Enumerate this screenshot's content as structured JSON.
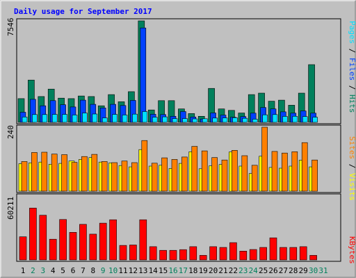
{
  "chart_data": [
    {
      "type": "bar",
      "title": "Daily usage for September 2017",
      "categories": [
        "1",
        "2",
        "3",
        "4",
        "5",
        "6",
        "7",
        "8",
        "9",
        "10",
        "11",
        "12",
        "13",
        "14",
        "15",
        "16",
        "17",
        "18",
        "19",
        "20",
        "21",
        "22",
        "23",
        "24",
        "25",
        "26",
        "27",
        "28",
        "29",
        "30",
        "31"
      ],
      "weekend_days": [
        "2",
        "3",
        "9",
        "10",
        "16",
        "17",
        "23",
        "24",
        "30",
        "31"
      ],
      "ymax_label": "7546",
      "ymax": 7546,
      "series": [
        {
          "name": "Hits",
          "color": "#00805c",
          "values": [
            1760,
            3140,
            1920,
            2470,
            1800,
            1760,
            1960,
            1920,
            1230,
            2060,
            1530,
            2280,
            7546,
            920,
            1610,
            1610,
            1000,
            650,
            450,
            2520,
            1000,
            890,
            690,
            2060,
            2170,
            1570,
            1650,
            1270,
            2170,
            4290,
            0
          ]
        },
        {
          "name": "Files",
          "color": "#0040ff",
          "values": [
            750,
            1710,
            1230,
            1610,
            1310,
            1140,
            1650,
            1340,
            1070,
            1340,
            1250,
            1630,
            7020,
            600,
            580,
            450,
            800,
            400,
            250,
            700,
            540,
            380,
            430,
            680,
            1100,
            1000,
            780,
            680,
            850,
            680,
            0
          ]
        },
        {
          "name": "Pages",
          "color": "#00e0ff",
          "values": [
            400,
            580,
            580,
            590,
            590,
            550,
            690,
            620,
            330,
            590,
            550,
            610,
            800,
            380,
            410,
            280,
            280,
            260,
            270,
            320,
            330,
            340,
            300,
            240,
            560,
            580,
            440,
            450,
            430,
            380,
            0
          ]
        }
      ]
    },
    {
      "type": "bar",
      "ymax_label": "240",
      "ymax": 240,
      "series": [
        {
          "name": "Visits",
          "color": "#ffff00",
          "values": [
            103,
            106,
            109,
            101,
            104,
            113,
            119,
            126,
            109,
            106,
            96,
            91,
            156,
            94,
            97,
            85,
            104,
            148,
            84,
            95,
            100,
            147,
            94,
            66,
            131,
            89,
            86,
            94,
            116,
            91,
            0
          ]
        },
        {
          "name": "Sites",
          "color": "#ff8000",
          "values": [
            111,
            145,
            146,
            139,
            137,
            108,
            130,
            138,
            111,
            107,
            113,
            107,
            190,
            105,
            125,
            119,
            128,
            168,
            151,
            126,
            117,
            153,
            133,
            97,
            240,
            149,
            143,
            148,
            182,
            117,
            0
          ]
        }
      ],
      "legend_separator": "/"
    },
    {
      "type": "bar",
      "ymax_label": "60211",
      "ymax": 60211,
      "series": [
        {
          "name": "KBytes",
          "color": "#ff0000",
          "values": [
            21800,
            48800,
            42100,
            19500,
            38100,
            26000,
            33500,
            24300,
            34600,
            37800,
            13700,
            14100,
            37800,
            12500,
            9000,
            9000,
            9700,
            12500,
            4300,
            12500,
            11800,
            16300,
            8300,
            9800,
            11800,
            20800,
            11800,
            11800,
            12500,
            4300,
            0
          ]
        }
      ]
    }
  ],
  "legend_top": {
    "sep": " / "
  }
}
